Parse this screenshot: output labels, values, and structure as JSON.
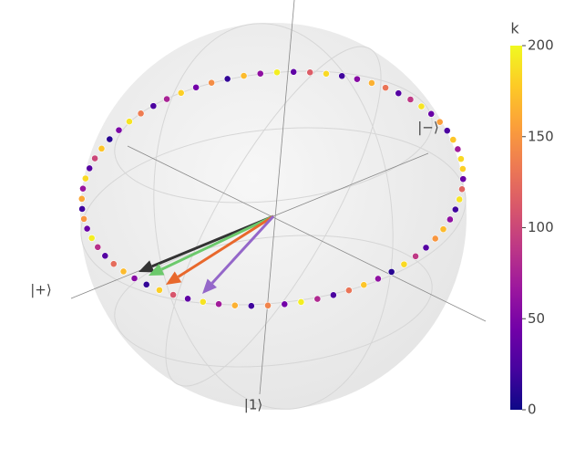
{
  "chart_data": {
    "type": "bloch",
    "axis_labels": {
      "x": "|+⟩",
      "y": "|−⟩",
      "z": "|1⟩"
    },
    "vectors": [
      {
        "color": "#333333"
      },
      {
        "color": "#6cc96c"
      },
      {
        "color": "#e8682c"
      },
      {
        "color": "#9467c9"
      }
    ],
    "colorbar": {
      "title": "k",
      "clim": [
        0,
        200
      ],
      "ticks": [
        0,
        50,
        100,
        150,
        200
      ],
      "colorscale": [
        "#0d0887",
        "#46039f",
        "#7201a8",
        "#9c179e",
        "#bd3786",
        "#d8576b",
        "#ed7953",
        "#fb9f3a",
        "#fdca26",
        "#f0f921"
      ]
    },
    "points": {
      "k": [
        180,
        40,
        120,
        190,
        20,
        60,
        170,
        150,
        30,
        90,
        185,
        10,
        60,
        175,
        130,
        25,
        80,
        195,
        45,
        140,
        20,
        165,
        70,
        190,
        35,
        110,
        180,
        15,
        55,
        170,
        125,
        30,
        85,
        195,
        40,
        150,
        20,
        160,
        65,
        185,
        30,
        100,
        175,
        10,
        50,
        190,
        135,
        25,
        75,
        180,
        45,
        145,
        15,
        170,
        60,
        195,
        35,
        115,
        185,
        20,
        55,
        165,
        130,
        30,
        90,
        190,
        40,
        155,
        25,
        175,
        70,
        185
      ]
    }
  }
}
